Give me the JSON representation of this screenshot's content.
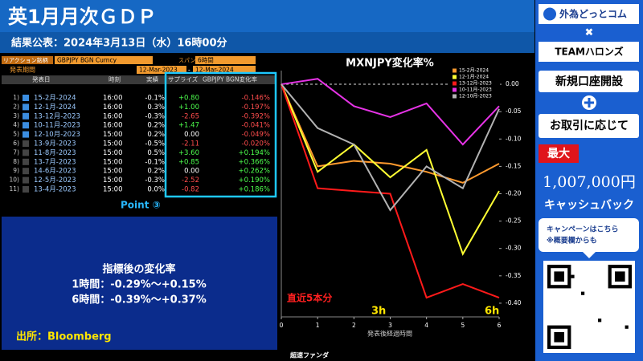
{
  "header": {
    "title": "英1月月次ＧＤＰ",
    "subtitle": "結果公表：2024年3月13日（水）16時00分"
  },
  "bloomberg": {
    "reaction_label": "リアクション銘柄",
    "reaction_value": "GBPJPY BGN Curncy",
    "span_label": "スパン",
    "span_value": "6時間",
    "period_label": "発表期間",
    "period_from": "12-Mar-2023",
    "period_sep": "-",
    "period_to": "12-Mar-2024",
    "columns": [
      "発表日",
      "時刻",
      "実績",
      "サプライズ",
      "GBPJPY BGN変化率"
    ],
    "rows": [
      [
        "1)",
        "15-2月-2024",
        "16:00",
        "-0.1%",
        "+0.80",
        "-0.146%"
      ],
      [
        "2)",
        "12-1月-2024",
        "16:00",
        "0.3%",
        "+1.00",
        "-0.197%"
      ],
      [
        "3)",
        "13-12月-2023",
        "16:00",
        "-0.3%",
        "-2.65",
        "-0.392%"
      ],
      [
        "4)",
        "10-11月-2023",
        "16:00",
        "0.2%",
        "+1.47",
        "-0.041%"
      ],
      [
        "5)",
        "12-10月-2023",
        "15:00",
        "0.2%",
        "0.00",
        "-0.049%"
      ],
      [
        "6)",
        "13-9月-2023",
        "15:00",
        "-0.5%",
        "-2.11",
        "-0.020%"
      ],
      [
        "7)",
        "11-8月-2023",
        "15:00",
        "0.5%",
        "+3.60",
        "+0.194%"
      ],
      [
        "8)",
        "13-7月-2023",
        "15:00",
        "-0.1%",
        "+0.85",
        "+0.366%"
      ],
      [
        "9)",
        "14-6月-2023",
        "15:00",
        "0.2%",
        "0.00",
        "+0.262%"
      ],
      [
        "10)",
        "12-5月-2023",
        "15:00",
        "-0.3%",
        "-2.52",
        "+0.190%"
      ],
      [
        "11)",
        "13-4月-2023",
        "15:00",
        "0.0%",
        "-0.82",
        "+0.186%"
      ]
    ],
    "point": "Point ③"
  },
  "summary": {
    "title": "指標後の変化率",
    "line1": "1時間：-0.29%～+0.15%",
    "line2": "6時間：-0.39%～+0.37%",
    "source": "出所：Bloomberg"
  },
  "chart_data": {
    "type": "line",
    "title": "MXNJPY変化率%",
    "x_label": "発表後経過時間",
    "x": [
      0,
      1,
      2,
      3,
      4,
      5,
      6
    ],
    "xlim": [
      0,
      6
    ],
    "xticks": [
      0,
      1,
      2,
      3,
      4,
      5,
      6
    ],
    "ylim": [
      -0.425,
      0.025
    ],
    "yticks": [
      {
        "value": 0,
        "label": "0.00"
      },
      {
        "value": -0.05,
        "label": "-0.05"
      },
      {
        "value": -0.1,
        "label": "-0.10"
      },
      {
        "value": -0.15,
        "label": "-0.15"
      },
      {
        "value": -0.2,
        "label": "-0.20"
      },
      {
        "value": -0.25,
        "label": "-0.25"
      },
      {
        "value": -0.3,
        "label": "-0.30"
      },
      {
        "value": -0.35,
        "label": "-0.35"
      },
      {
        "value": -0.4,
        "label": "-0.40"
      }
    ],
    "series": [
      {
        "name": "15-2月-2024",
        "color": "#ff9a2e",
        "values": [
          0,
          -0.15,
          -0.14,
          -0.145,
          -0.16,
          -0.18,
          -0.145
        ]
      },
      {
        "name": "12-1月-2024",
        "color": "#ffff33",
        "values": [
          0,
          -0.16,
          -0.11,
          -0.17,
          -0.12,
          -0.31,
          -0.195
        ]
      },
      {
        "name": "13-12月-2023",
        "color": "#ff1a1a",
        "values": [
          0,
          -0.19,
          -0.195,
          -0.2,
          -0.39,
          -0.365,
          -0.39
        ]
      },
      {
        "name": "10-11月-2023",
        "color": "#e633e6",
        "values": [
          0,
          0.01,
          -0.04,
          -0.06,
          -0.035,
          -0.11,
          -0.04
        ]
      },
      {
        "name": "12-10月-2023",
        "color": "#b3b3b3",
        "values": [
          0,
          -0.08,
          -0.11,
          -0.23,
          -0.15,
          -0.19,
          -0.045
        ]
      }
    ],
    "annotations": [
      "直近5本分",
      "3h",
      "6h"
    ]
  },
  "footer": "超速ファンダ",
  "ad": {
    "brand": "外為どっとコム",
    "cross": "✖",
    "team": "TEAMハロンズ",
    "open": "新規口座開設",
    "trade": "お取引に応じて",
    "max": "最大",
    "amount": "1,007,000円",
    "cashback": "キャッシュバック",
    "campaign": "キャンペーンはこちら",
    "note": "※概要欄からも"
  }
}
